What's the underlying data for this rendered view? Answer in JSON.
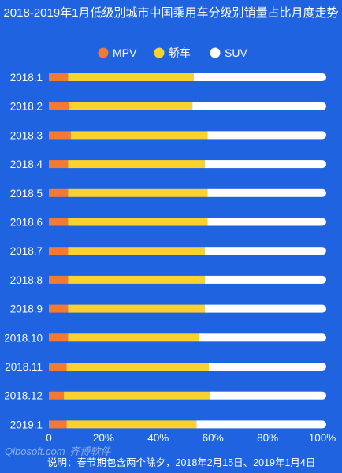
{
  "chart_data": {
    "type": "bar",
    "orientation": "horizontal",
    "stacked": true,
    "title": "2018-2019年1月低级别城市中国乘用车分级别销量占比月度走势",
    "categories": [
      "2018.1",
      "2018.2",
      "2018.3",
      "2018.4",
      "2018.5",
      "2018.6",
      "2018.7",
      "2018.8",
      "2018.9",
      "2018.10",
      "2018.11",
      "2018.12",
      "2019.1"
    ],
    "series": [
      {
        "name": "MPV",
        "color": "#f47a33",
        "values": [
          7,
          7.5,
          8,
          7,
          7,
          7,
          7,
          7,
          7,
          7,
          6.5,
          5.5,
          6.5
        ]
      },
      {
        "name": "轿车",
        "color": "#fad22d",
        "values": [
          46,
          45,
          50,
          50,
          51,
          51,
          50,
          50,
          50,
          48,
          52,
          53.5,
          47.5
        ]
      },
      {
        "name": "SUV",
        "color": "#ffffff",
        "values": [
          47,
          47.5,
          42,
          43,
          42,
          42,
          43,
          43,
          43,
          45,
          41.5,
          41,
          46
        ]
      }
    ],
    "xlim": [
      0,
      100
    ],
    "xticks": [
      "0",
      "20%",
      "40%",
      "60%",
      "80%",
      "100%"
    ],
    "xlabel": "",
    "ylabel": "",
    "legend_position": "top-center",
    "grid": false
  },
  "note": "说明：春节期包含两个除夕，2018年2月15日、2019年1月4日",
  "watermark": {
    "main": "Qibosoft",
    "dot": ".com",
    "sub": "齐博软件"
  }
}
